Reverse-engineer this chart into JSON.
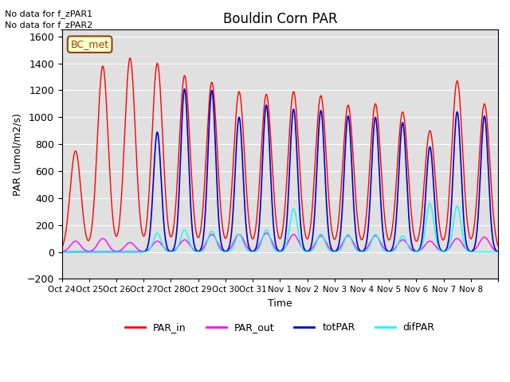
{
  "title": "Bouldin Corn PAR",
  "ylabel": "PAR (umol/m2/s)",
  "xlabel": "Time",
  "no_data_text": [
    "No data for f_zPAR1",
    "No data for f_zPAR2"
  ],
  "bc_met_label": "BC_met",
  "ylim": [
    -200,
    1650
  ],
  "yticks": [
    -200,
    0,
    200,
    400,
    600,
    800,
    1000,
    1200,
    1400,
    1600
  ],
  "x_tick_positions": [
    0,
    1,
    2,
    3,
    4,
    5,
    6,
    7,
    8,
    9,
    10,
    11,
    12,
    13,
    14,
    15,
    16
  ],
  "x_tick_labels": [
    "Oct 24",
    "Oct 25",
    "Oct 26",
    "Oct 27",
    "Oct 28",
    "Oct 29",
    "Oct 30",
    "Oct 31",
    "Nov 1",
    "Nov 2",
    "Nov 3",
    "Nov 4",
    "Nov 5",
    "Nov 6",
    "Nov 7",
    "Nov 8",
    ""
  ],
  "background_color": "#e0e0e0",
  "colors": {
    "PAR_in": "#ff0000",
    "PAR_out": "#ff00ff",
    "totPAR": "#0000cc",
    "difPAR": "#00ffff"
  },
  "par_in_peaks": [
    750,
    1380,
    1440,
    1400,
    1310,
    1260,
    1190,
    1170,
    1190,
    1160,
    1090,
    1100,
    1040,
    900,
    1270,
    1100
  ],
  "par_out_peaks": [
    80,
    100,
    70,
    80,
    90,
    130,
    130,
    140,
    130,
    120,
    120,
    120,
    90,
    80,
    100,
    110
  ],
  "totpar_peaks": [
    0,
    0,
    0,
    890,
    1210,
    1200,
    1000,
    1090,
    1060,
    1050,
    1010,
    1000,
    960,
    780,
    1040,
    1010
  ],
  "difpar_peaks": [
    0,
    0,
    0,
    140,
    165,
    155,
    130,
    165,
    320,
    135,
    130,
    130,
    120,
    360,
    340,
    0
  ],
  "n_days": 16
}
